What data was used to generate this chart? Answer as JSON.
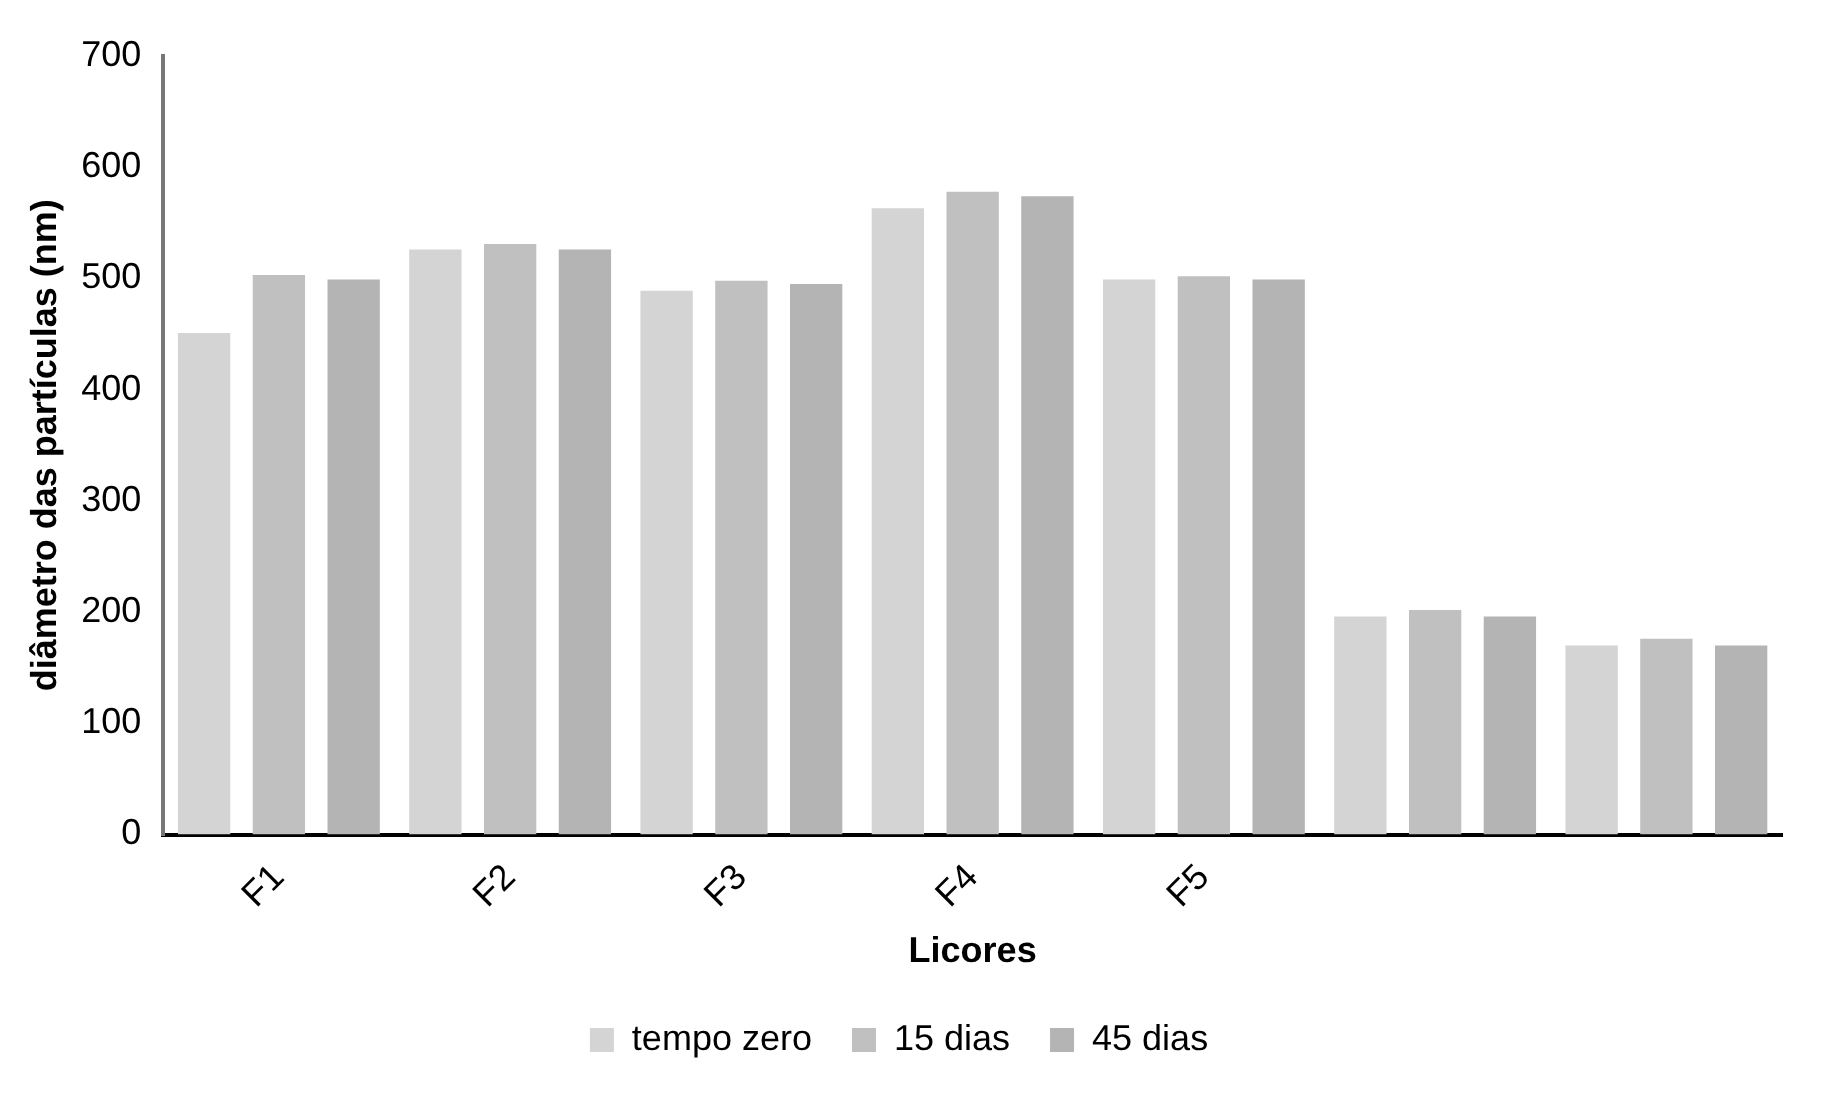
{
  "chart_data": {
    "type": "bar",
    "xlabel": "Licores",
    "ylabel": "diâmetro das partículas (nm)",
    "categories": [
      "F1",
      "F2",
      "F3",
      "F4",
      "F5",
      null,
      null
    ],
    "series": [
      {
        "name": "tempo zero",
        "color": "#d4d4d4",
        "values": [
          451,
          526,
          489,
          563,
          499,
          196,
          170
        ]
      },
      {
        "name": "15 dias",
        "color": "#c0c0c0",
        "values": [
          503,
          531,
          498,
          578,
          502,
          202,
          176
        ]
      },
      {
        "name": "45 dias",
        "color": "#b4b4b4",
        "values": [
          499,
          526,
          495,
          574,
          499,
          196,
          170
        ]
      }
    ],
    "ylim": [
      0,
      700
    ],
    "yticks": [
      0,
      100,
      200,
      300,
      400,
      500,
      600,
      700
    ],
    "grid": false,
    "legend": "bottom"
  }
}
